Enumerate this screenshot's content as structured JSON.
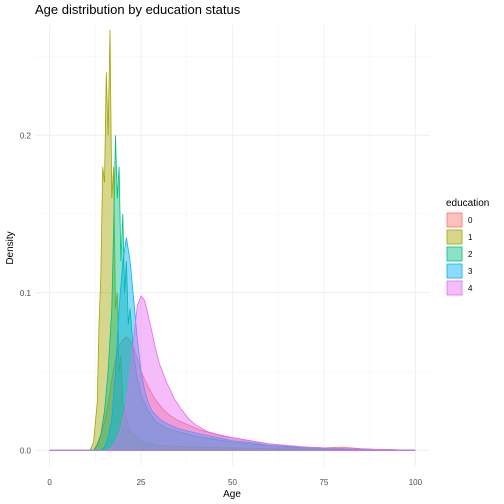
{
  "chart_data": {
    "type": "area",
    "title": "Age distribution by education status",
    "xlabel": "Age",
    "ylabel": "Density",
    "xlim": [
      -4,
      104
    ],
    "ylim": [
      -0.01,
      0.27
    ],
    "x_ticks": [
      0,
      25,
      50,
      75,
      100
    ],
    "y_ticks": [
      0.0,
      0.1,
      0.2
    ],
    "y_tick_labels": [
      "0.0",
      "0.1",
      "0.2"
    ],
    "grid": true,
    "legend": {
      "title": "education",
      "position": "right"
    },
    "series": [
      {
        "name": "0",
        "color": "#F8766D",
        "points": [
          [
            0,
            0
          ],
          [
            12,
            0
          ],
          [
            13,
            0.004
          ],
          [
            14,
            0.01
          ],
          [
            15,
            0.018
          ],
          [
            16,
            0.03
          ],
          [
            17,
            0.045
          ],
          [
            18,
            0.058
          ],
          [
            19,
            0.066
          ],
          [
            20,
            0.07
          ],
          [
            21,
            0.072
          ],
          [
            22,
            0.07
          ],
          [
            23,
            0.065
          ],
          [
            24,
            0.058
          ],
          [
            25,
            0.05
          ],
          [
            27,
            0.04
          ],
          [
            29,
            0.032
          ],
          [
            31,
            0.026
          ],
          [
            33,
            0.022
          ],
          [
            35,
            0.019
          ],
          [
            38,
            0.016
          ],
          [
            41,
            0.013
          ],
          [
            44,
            0.011
          ],
          [
            47,
            0.009
          ],
          [
            50,
            0.008
          ],
          [
            55,
            0.006
          ],
          [
            60,
            0.004
          ],
          [
            65,
            0.003
          ],
          [
            70,
            0.002
          ],
          [
            75,
            0.0015
          ],
          [
            80,
            0.002
          ],
          [
            85,
            0.001
          ],
          [
            90,
            0.0005
          ],
          [
            100,
            0
          ]
        ]
      },
      {
        "name": "1",
        "color": "#A3A500",
        "points": [
          [
            0,
            0
          ],
          [
            11,
            0
          ],
          [
            12,
            0.005
          ],
          [
            13,
            0.03
          ],
          [
            13.5,
            0.08
          ],
          [
            14,
            0.11
          ],
          [
            14.5,
            0.18
          ],
          [
            15,
            0.17
          ],
          [
            15.5,
            0.24
          ],
          [
            16,
            0.2
          ],
          [
            16.5,
            0.267
          ],
          [
            17,
            0.16
          ],
          [
            17.5,
            0.18
          ],
          [
            18,
            0.09
          ],
          [
            18.5,
            0.1
          ],
          [
            19,
            0.05
          ],
          [
            19.5,
            0.06
          ],
          [
            20,
            0.03
          ],
          [
            21,
            0.02
          ],
          [
            22,
            0.012
          ],
          [
            24,
            0.008
          ],
          [
            26,
            0.005
          ],
          [
            30,
            0.003
          ],
          [
            40,
            0.002
          ],
          [
            60,
            0.001
          ],
          [
            80,
            0.0005
          ],
          [
            100,
            0
          ]
        ]
      },
      {
        "name": "2",
        "color": "#00BF7D",
        "points": [
          [
            0,
            0
          ],
          [
            12,
            0
          ],
          [
            13,
            0.003
          ],
          [
            14,
            0.01
          ],
          [
            15,
            0.025
          ],
          [
            16,
            0.05
          ],
          [
            17,
            0.09
          ],
          [
            17.5,
            0.14
          ],
          [
            18,
            0.2
          ],
          [
            18.5,
            0.16
          ],
          [
            19,
            0.18
          ],
          [
            19.5,
            0.12
          ],
          [
            20,
            0.15
          ],
          [
            20.5,
            0.1
          ],
          [
            21,
            0.12
          ],
          [
            21.5,
            0.08
          ],
          [
            22,
            0.09
          ],
          [
            23,
            0.06
          ],
          [
            24,
            0.045
          ],
          [
            25,
            0.035
          ],
          [
            27,
            0.025
          ],
          [
            29,
            0.018
          ],
          [
            32,
            0.014
          ],
          [
            35,
            0.012
          ],
          [
            40,
            0.009
          ],
          [
            45,
            0.007
          ],
          [
            50,
            0.005
          ],
          [
            55,
            0.004
          ],
          [
            60,
            0.003
          ],
          [
            70,
            0.002
          ],
          [
            80,
            0.001
          ],
          [
            90,
            0.0005
          ],
          [
            100,
            0
          ]
        ]
      },
      {
        "name": "3",
        "color": "#00B0F6",
        "points": [
          [
            0,
            0
          ],
          [
            14,
            0
          ],
          [
            15,
            0.002
          ],
          [
            16,
            0.008
          ],
          [
            17,
            0.02
          ],
          [
            18,
            0.05
          ],
          [
            19,
            0.09
          ],
          [
            20,
            0.12
          ],
          [
            21,
            0.135
          ],
          [
            22,
            0.12
          ],
          [
            23,
            0.095
          ],
          [
            24,
            0.07
          ],
          [
            25,
            0.05
          ],
          [
            26,
            0.038
          ],
          [
            27,
            0.03
          ],
          [
            28,
            0.025
          ],
          [
            30,
            0.02
          ],
          [
            32,
            0.017
          ],
          [
            35,
            0.014
          ],
          [
            38,
            0.012
          ],
          [
            42,
            0.01
          ],
          [
            46,
            0.008
          ],
          [
            50,
            0.006
          ],
          [
            55,
            0.005
          ],
          [
            60,
            0.003
          ],
          [
            65,
            0.002
          ],
          [
            70,
            0.0015
          ],
          [
            80,
            0.001
          ],
          [
            90,
            0.0005
          ],
          [
            100,
            0
          ]
        ]
      },
      {
        "name": "4",
        "color": "#E76BF3",
        "points": [
          [
            0,
            0
          ],
          [
            16,
            0
          ],
          [
            17,
            0.002
          ],
          [
            18,
            0.005
          ],
          [
            19,
            0.01
          ],
          [
            20,
            0.018
          ],
          [
            21,
            0.03
          ],
          [
            22,
            0.048
          ],
          [
            23,
            0.072
          ],
          [
            24,
            0.092
          ],
          [
            25,
            0.098
          ],
          [
            26,
            0.095
          ],
          [
            27,
            0.085
          ],
          [
            28,
            0.075
          ],
          [
            29,
            0.064
          ],
          [
            30,
            0.055
          ],
          [
            32,
            0.043
          ],
          [
            34,
            0.033
          ],
          [
            36,
            0.026
          ],
          [
            38,
            0.02
          ],
          [
            40,
            0.016
          ],
          [
            43,
            0.012
          ],
          [
            46,
            0.01
          ],
          [
            50,
            0.008
          ],
          [
            55,
            0.006
          ],
          [
            60,
            0.004
          ],
          [
            65,
            0.003
          ],
          [
            70,
            0.002
          ],
          [
            80,
            0.001
          ],
          [
            90,
            0.0005
          ],
          [
            100,
            0
          ]
        ]
      }
    ]
  }
}
